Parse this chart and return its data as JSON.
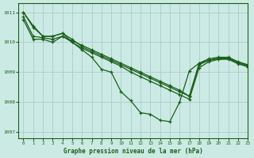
{
  "background_color": "#cceae4",
  "grid_color": "#aacccc",
  "line_color": "#1a5e1a",
  "xlabel": "Graphe pression niveau de la mer (hPa)",
  "xlim": [
    -0.5,
    23
  ],
  "ylim": [
    1006.8,
    1011.3
  ],
  "yticks": [
    1007,
    1008,
    1009,
    1010,
    1011
  ],
  "xticks": [
    0,
    1,
    2,
    3,
    4,
    5,
    6,
    7,
    8,
    9,
    10,
    11,
    12,
    13,
    14,
    15,
    16,
    17,
    18,
    19,
    20,
    21,
    22,
    23
  ],
  "series": [
    [
      1011.0,
      1010.55,
      1010.2,
      1010.2,
      1010.3,
      1010.1,
      1009.85,
      1009.7,
      1009.55,
      1009.4,
      1009.25,
      1009.1,
      1008.95,
      1008.8,
      1008.65,
      1008.5,
      1008.35,
      1008.2,
      1009.3,
      1009.45,
      1009.5,
      1009.5,
      1009.35,
      1009.25
    ],
    [
      1010.85,
      1010.2,
      1010.15,
      1010.1,
      1010.2,
      1010.05,
      1009.9,
      1009.75,
      1009.6,
      1009.45,
      1009.3,
      1009.15,
      1009.0,
      1008.85,
      1008.7,
      1008.55,
      1008.4,
      1008.2,
      1009.25,
      1009.4,
      1009.47,
      1009.48,
      1009.33,
      1009.23
    ],
    [
      1010.75,
      1010.1,
      1010.1,
      1010.0,
      1010.2,
      1010.0,
      1009.8,
      1009.65,
      1009.5,
      1009.35,
      1009.2,
      1009.0,
      1008.85,
      1008.7,
      1008.55,
      1008.4,
      1008.25,
      1008.1,
      1009.15,
      1009.35,
      1009.43,
      1009.43,
      1009.28,
      1009.18
    ],
    [
      1011.0,
      1010.5,
      1010.2,
      1010.2,
      1010.3,
      1010.0,
      1009.75,
      1009.5,
      1009.1,
      1009.0,
      1008.35,
      1008.05,
      1007.65,
      1007.6,
      1007.4,
      1007.35,
      1008.0,
      1009.05,
      1009.3,
      1009.4,
      1009.45,
      1009.45,
      1009.3,
      1009.2
    ]
  ]
}
